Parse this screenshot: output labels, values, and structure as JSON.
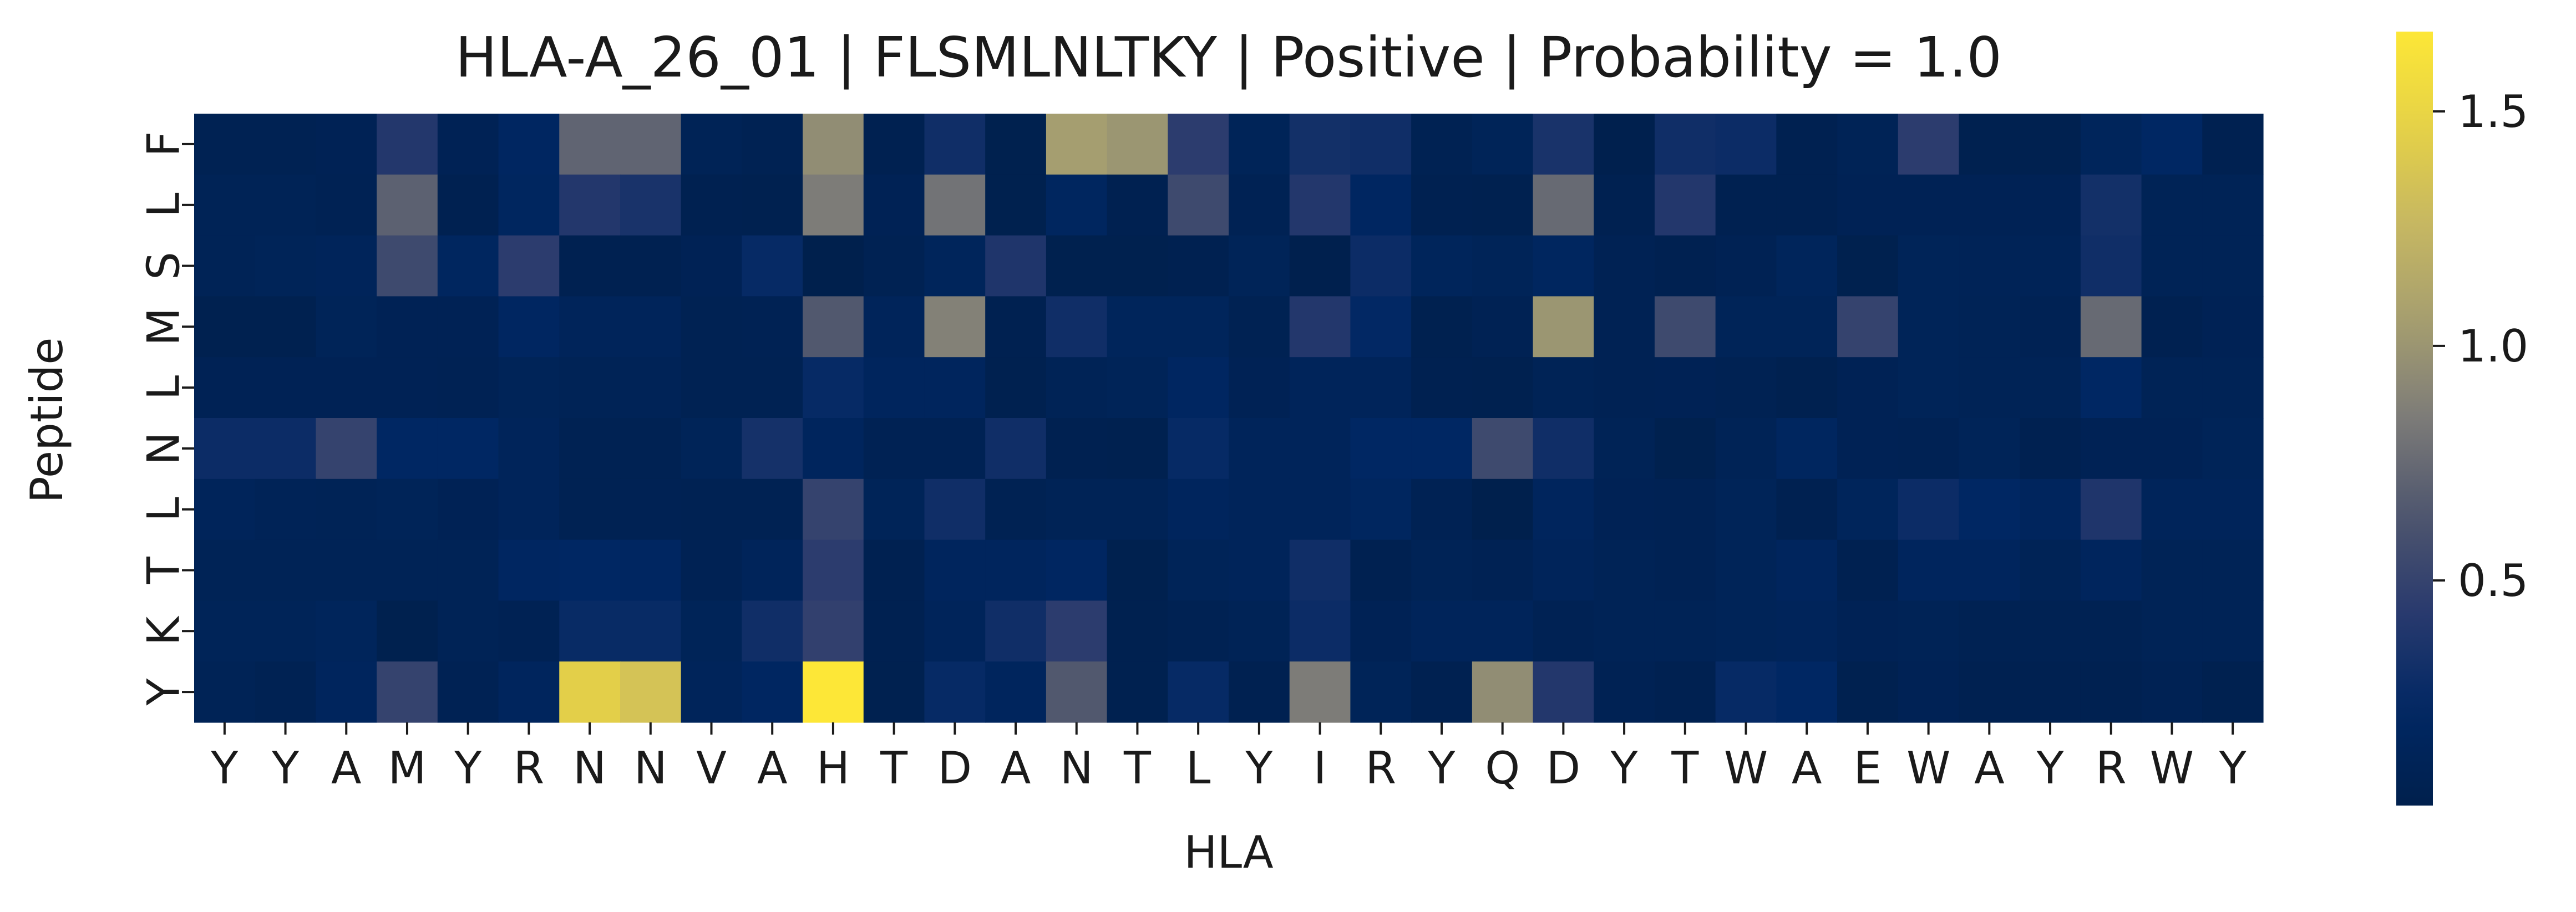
{
  "chart_data": {
    "type": "heatmap",
    "title": "HLA-A_26_01 | FLSMLNLTKY | Positive | Probability = 1.0",
    "xlabel": "HLA",
    "ylabel": "Peptide",
    "x_tick_labels": [
      "Y",
      "Y",
      "A",
      "M",
      "Y",
      "R",
      "N",
      "N",
      "V",
      "A",
      "H",
      "T",
      "D",
      "A",
      "N",
      "T",
      "L",
      "Y",
      "I",
      "R",
      "Y",
      "Q",
      "D",
      "Y",
      "T",
      "W",
      "A",
      "E",
      "W",
      "A",
      "Y",
      "R",
      "W",
      "Y"
    ],
    "y_tick_labels": [
      "F",
      "L",
      "S",
      "M",
      "L",
      "N",
      "L",
      "T",
      "K",
      "Y"
    ],
    "colorbar": {
      "colormap": "cividis",
      "vmin": 0.02,
      "vmax": 1.67,
      "ticks": [
        0.5,
        1.0,
        1.5
      ],
      "tick_labels": [
        "0.5",
        "1.0",
        "1.5"
      ]
    },
    "values": [
      [
        0.07,
        0.07,
        0.09,
        0.4,
        0.09,
        0.2,
        0.72,
        0.72,
        0.1,
        0.07,
        0.95,
        0.06,
        0.3,
        0.04,
        1.05,
        1.0,
        0.45,
        0.12,
        0.32,
        0.3,
        0.07,
        0.12,
        0.35,
        0.03,
        0.3,
        0.28,
        0.06,
        0.1,
        0.45,
        0.05,
        0.05,
        0.15,
        0.22,
        0.06
      ],
      [
        0.1,
        0.1,
        0.08,
        0.7,
        0.06,
        0.18,
        0.4,
        0.35,
        0.06,
        0.05,
        0.85,
        0.09,
        0.8,
        0.04,
        0.18,
        0.06,
        0.55,
        0.08,
        0.4,
        0.2,
        0.06,
        0.05,
        0.75,
        0.06,
        0.4,
        0.06,
        0.06,
        0.09,
        0.09,
        0.09,
        0.09,
        0.32,
        0.1,
        0.1
      ],
      [
        0.1,
        0.12,
        0.14,
        0.55,
        0.18,
        0.45,
        0.06,
        0.06,
        0.09,
        0.25,
        0.02,
        0.07,
        0.15,
        0.38,
        0.04,
        0.04,
        0.06,
        0.12,
        0.03,
        0.28,
        0.15,
        0.12,
        0.18,
        0.08,
        0.06,
        0.08,
        0.15,
        0.04,
        0.12,
        0.11,
        0.11,
        0.3,
        0.1,
        0.1
      ],
      [
        0.05,
        0.05,
        0.12,
        0.09,
        0.09,
        0.2,
        0.14,
        0.14,
        0.07,
        0.08,
        0.65,
        0.14,
        0.88,
        0.06,
        0.3,
        0.15,
        0.15,
        0.07,
        0.4,
        0.23,
        0.05,
        0.08,
        1.0,
        0.08,
        0.55,
        0.12,
        0.12,
        0.5,
        0.12,
        0.1,
        0.08,
        0.75,
        0.06,
        0.09
      ],
      [
        0.09,
        0.09,
        0.09,
        0.09,
        0.08,
        0.12,
        0.1,
        0.11,
        0.07,
        0.07,
        0.25,
        0.16,
        0.16,
        0.05,
        0.1,
        0.12,
        0.2,
        0.09,
        0.14,
        0.14,
        0.06,
        0.05,
        0.1,
        0.08,
        0.09,
        0.07,
        0.05,
        0.09,
        0.12,
        0.1,
        0.1,
        0.22,
        0.1,
        0.1
      ],
      [
        0.28,
        0.28,
        0.5,
        0.22,
        0.22,
        0.14,
        0.07,
        0.07,
        0.12,
        0.33,
        0.16,
        0.08,
        0.08,
        0.3,
        0.06,
        0.05,
        0.25,
        0.14,
        0.14,
        0.22,
        0.22,
        0.55,
        0.3,
        0.1,
        0.04,
        0.1,
        0.18,
        0.09,
        0.08,
        0.12,
        0.06,
        0.09,
        0.09,
        0.12
      ],
      [
        0.14,
        0.11,
        0.1,
        0.12,
        0.09,
        0.14,
        0.07,
        0.08,
        0.07,
        0.07,
        0.5,
        0.12,
        0.3,
        0.07,
        0.1,
        0.1,
        0.16,
        0.14,
        0.14,
        0.18,
        0.08,
        0.02,
        0.16,
        0.09,
        0.08,
        0.12,
        0.06,
        0.15,
        0.28,
        0.22,
        0.16,
        0.38,
        0.14,
        0.14
      ],
      [
        0.1,
        0.1,
        0.1,
        0.1,
        0.1,
        0.2,
        0.22,
        0.2,
        0.08,
        0.14,
        0.45,
        0.06,
        0.16,
        0.16,
        0.2,
        0.04,
        0.12,
        0.14,
        0.3,
        0.06,
        0.1,
        0.08,
        0.14,
        0.1,
        0.08,
        0.12,
        0.16,
        0.06,
        0.16,
        0.16,
        0.1,
        0.16,
        0.1,
        0.1
      ],
      [
        0.12,
        0.12,
        0.15,
        0.04,
        0.1,
        0.08,
        0.26,
        0.26,
        0.12,
        0.3,
        0.48,
        0.06,
        0.14,
        0.3,
        0.45,
        0.05,
        0.07,
        0.1,
        0.28,
        0.09,
        0.14,
        0.14,
        0.08,
        0.1,
        0.1,
        0.12,
        0.14,
        0.09,
        0.1,
        0.07,
        0.07,
        0.07,
        0.1,
        0.1
      ],
      [
        0.1,
        0.07,
        0.16,
        0.5,
        0.08,
        0.16,
        1.45,
        1.35,
        0.14,
        0.2,
        1.67,
        0.05,
        0.25,
        0.16,
        0.65,
        0.05,
        0.25,
        0.06,
        0.85,
        0.12,
        0.06,
        0.95,
        0.4,
        0.08,
        0.06,
        0.25,
        0.22,
        0.05,
        0.09,
        0.06,
        0.06,
        0.06,
        0.08,
        0.05
      ]
    ]
  }
}
